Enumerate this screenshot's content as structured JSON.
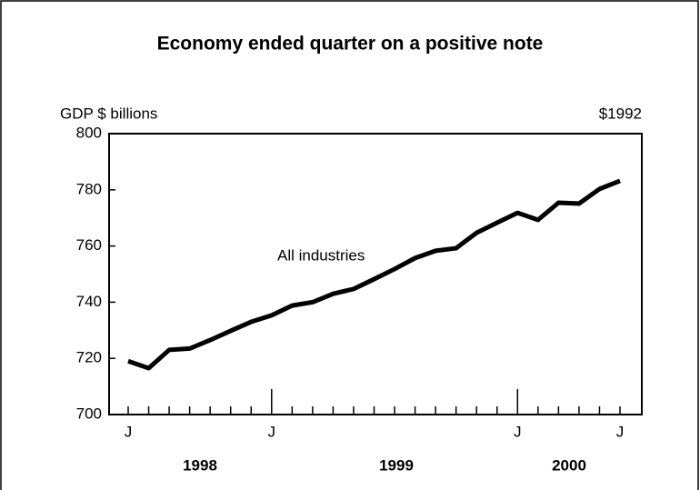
{
  "chart_data": {
    "type": "line",
    "title": "Economy ended quarter on a positive note",
    "y_axis_label": "GDP $ billions",
    "y_axis_unit": "$1992",
    "annotation": "All industries",
    "categories": [
      "J",
      null,
      null,
      null,
      null,
      null,
      null,
      "J",
      null,
      null,
      null,
      null,
      null,
      null,
      null,
      null,
      null,
      null,
      null,
      "J",
      null,
      null,
      null,
      null,
      "J"
    ],
    "year_labels": [
      "1998",
      "1999",
      "2000"
    ],
    "series": [
      {
        "name": "All industries",
        "color": "#000000",
        "values": [
          719,
          716.5,
          723,
          723.5,
          726.5,
          729.8,
          733,
          735.3,
          738.8,
          740,
          743,
          744.7,
          748.2,
          751.8,
          755.7,
          758.3,
          759.2,
          764.7,
          768.3,
          771.8,
          769.3,
          775.4,
          775.1,
          780.3,
          783.2
        ]
      }
    ],
    "ylim": [
      700,
      800
    ],
    "yticks": [
      700,
      720,
      740,
      760,
      780,
      800
    ],
    "grid": false
  }
}
